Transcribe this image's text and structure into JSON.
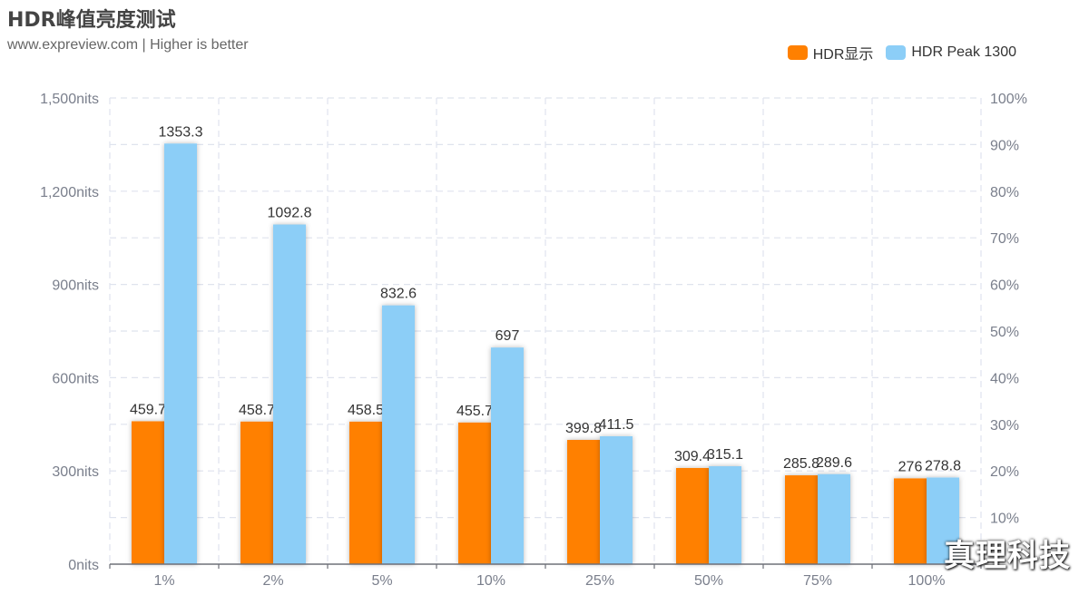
{
  "title": "HDR峰值亮度测试",
  "subtitle": "www.expreview.com | Higher is better",
  "watermark": "真理科技",
  "colors": {
    "series1": "#ff8000",
    "series2": "#8ccef7",
    "grid": "#dfe3ee",
    "axis": "#7a7f8c",
    "label": "#333333"
  },
  "chart_data": {
    "type": "bar",
    "title": "HDR峰值亮度测试",
    "subtitle": "www.expreview.com | Higher is better",
    "categories": [
      "1%",
      "2%",
      "5%",
      "10%",
      "25%",
      "50%",
      "75%",
      "100%"
    ],
    "series": [
      {
        "name": "HDR显示",
        "values": [
          459.7,
          458.7,
          458.5,
          455.7,
          399.8,
          309.4,
          285.8,
          276
        ]
      },
      {
        "name": "HDR Peak 1300",
        "values": [
          1353.3,
          1092.8,
          832.6,
          697,
          411.5,
          315.1,
          289.6,
          278.8
        ]
      }
    ],
    "y_left": {
      "min": 0,
      "max": 1500,
      "ticks": [
        0,
        300,
        600,
        900,
        1200,
        1500
      ],
      "tick_labels": [
        "0nits",
        "300nits",
        "600nits",
        "900nits",
        "1,200nits",
        "1,500nits"
      ]
    },
    "y_right": {
      "min": 0,
      "max": 100,
      "ticks": [
        10,
        20,
        30,
        40,
        50,
        60,
        70,
        80,
        90,
        100
      ],
      "tick_labels": [
        "10%",
        "20%",
        "30%",
        "40%",
        "50%",
        "60%",
        "70%",
        "80%",
        "90%",
        "100%"
      ]
    },
    "legend_position": "top-right",
    "grid": true
  }
}
